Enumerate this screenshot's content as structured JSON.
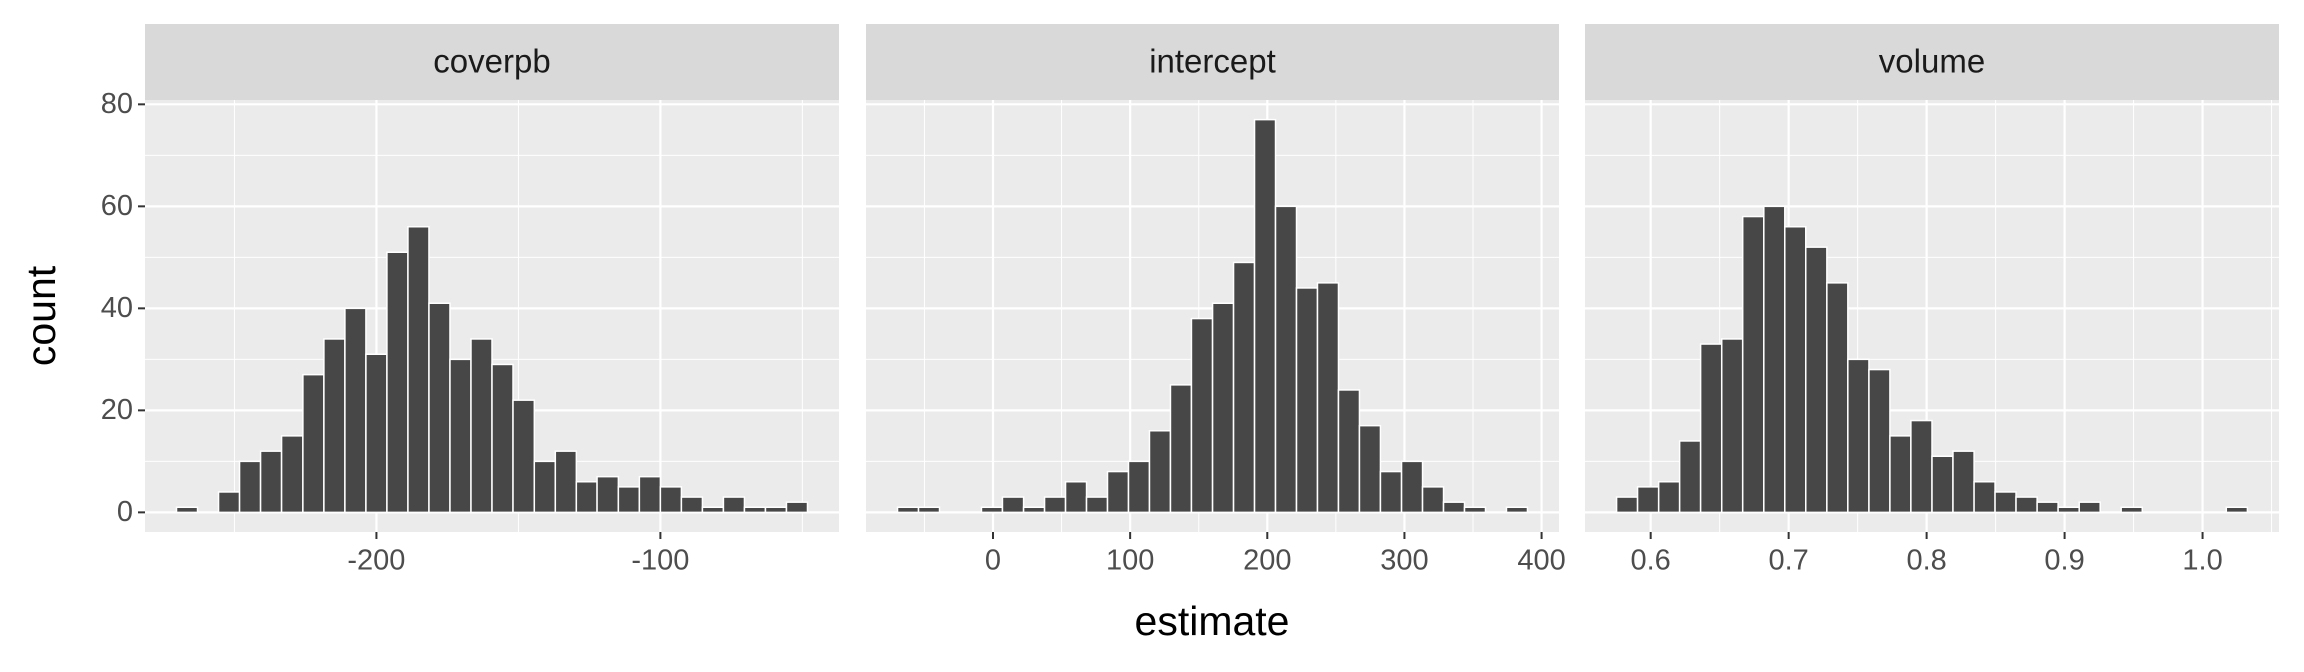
{
  "xlabel": "estimate",
  "ylabel": "count",
  "chart_data": [
    {
      "type": "histogram",
      "title": "coverpb",
      "color": "#474747",
      "bins": [
        -270.4,
        -263.0,
        -255.6,
        -248.2,
        -240.8,
        -233.4,
        -225.9,
        -218.5,
        -211.1,
        -203.7,
        -196.3,
        -188.9,
        -181.5,
        -174.1,
        -166.7,
        -159.3,
        -151.9,
        -144.4,
        -137.0,
        -129.6,
        -122.3,
        -114.8,
        -107.4,
        -100.0,
        -92.6,
        -85.2,
        -77.8,
        -70.4,
        -63.0,
        -55.6,
        -48.2
      ],
      "counts": [
        1,
        0,
        4,
        10,
        12,
        15,
        27,
        34,
        40,
        31,
        51,
        56,
        41,
        30,
        34,
        29,
        22,
        10,
        12,
        6,
        7,
        5,
        7,
        5,
        3,
        1,
        3,
        1,
        1,
        2
      ],
      "xlim": [
        -281.5,
        -37.1
      ],
      "xticks": [
        -200,
        -100
      ],
      "minor_xticks": [
        -250,
        -150,
        -50
      ],
      "ylim": [
        -3.85,
        80.85
      ],
      "yticks": [
        0,
        20,
        40,
        60,
        80
      ],
      "minor_yticks": [
        10,
        30,
        50,
        70
      ],
      "grid": true
    },
    {
      "type": "histogram",
      "title": "intercept",
      "color": "#474747",
      "bins": [
        -69.6,
        -54.3,
        -39.0,
        -23.7,
        -8.4,
        6.9,
        22.3,
        37.6,
        52.9,
        68.2,
        83.5,
        98.8,
        114.1,
        129.4,
        144.7,
        160.1,
        175.4,
        190.7,
        206.0,
        221.3,
        236.6,
        251.9,
        267.2,
        282.5,
        297.9,
        313.2,
        328.5,
        343.8,
        359.1,
        374.4,
        389.7
      ],
      "counts": [
        1,
        1,
        0,
        0,
        1,
        3,
        1,
        3,
        6,
        3,
        8,
        10,
        16,
        25,
        38,
        41,
        49,
        77,
        60,
        44,
        45,
        24,
        17,
        8,
        10,
        5,
        2,
        1,
        0,
        1
      ],
      "xlim": [
        -92.6,
        412.7
      ],
      "xticks": [
        0,
        100,
        200,
        300,
        400
      ],
      "minor_xticks": [
        -50,
        50,
        150,
        250,
        350
      ],
      "ylim": [
        -3.85,
        80.85
      ],
      "yticks": [
        0,
        20,
        40,
        60,
        80
      ],
      "minor_yticks": [
        10,
        30,
        50,
        70
      ],
      "grid": true
    },
    {
      "type": "histogram",
      "title": "volume",
      "color": "#474747",
      "bins": [
        0.5753,
        0.5905,
        0.6058,
        0.621,
        0.6362,
        0.6515,
        0.6667,
        0.682,
        0.6972,
        0.7124,
        0.7277,
        0.7429,
        0.7582,
        0.7734,
        0.7886,
        0.8039,
        0.8191,
        0.8344,
        0.8496,
        0.8648,
        0.8801,
        0.8953,
        0.9106,
        0.9258,
        0.941,
        0.9563,
        0.9715,
        0.9868,
        1.002,
        1.0172,
        1.0325
      ],
      "counts": [
        3,
        5,
        6,
        14,
        33,
        34,
        58,
        60,
        56,
        52,
        45,
        30,
        28,
        15,
        18,
        11,
        12,
        6,
        4,
        3,
        2,
        1,
        2,
        0,
        1,
        0,
        0,
        0,
        0,
        1
      ],
      "xlim": [
        0.5524,
        1.0554
      ],
      "xticks": [
        0.6,
        0.7,
        0.8,
        0.9,
        {
          "value": 1,
          "label": "1.0"
        }
      ],
      "minor_xticks": [
        0.65,
        0.75,
        0.85,
        0.95,
        1.05
      ],
      "ylim": [
        -3.85,
        80.85
      ],
      "yticks": [
        0,
        20,
        40,
        60,
        80
      ],
      "minor_yticks": [
        10,
        30,
        50,
        70
      ],
      "grid": true
    }
  ]
}
